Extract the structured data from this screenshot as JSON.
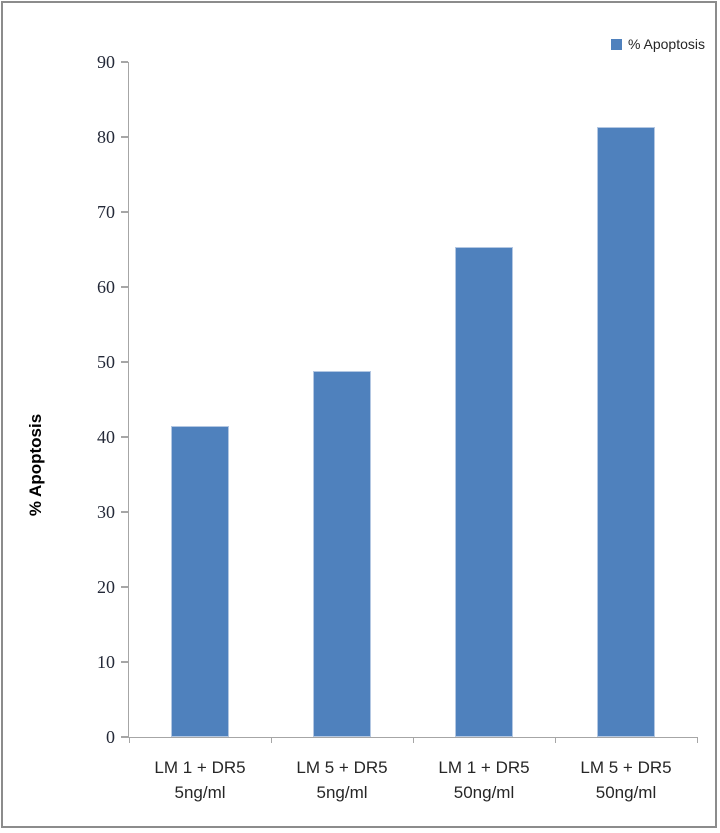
{
  "legend": {
    "label": "% Apoptosis"
  },
  "chart_data": {
    "type": "bar",
    "title": "",
    "categories": [
      "LM 1 + DR5 5ng/ml",
      "LM 5 + DR5 5ng/ml",
      "LM 1 + DR5 50ng/ml",
      "LM 5 + DR5 50ng/ml"
    ],
    "category_labels": [
      [
        "LM 1 + DR5",
        "5ng/ml"
      ],
      [
        "LM 5 + DR5",
        "5ng/ml"
      ],
      [
        "LM 1 + DR5",
        "50ng/ml"
      ],
      [
        "LM 5 + DR5",
        "50ng/ml"
      ]
    ],
    "series": [
      {
        "name": "% Apoptosis",
        "color": "#4f81bd",
        "values": [
          41.5,
          48.8,
          65.4,
          81.3
        ]
      }
    ],
    "xlabel": "",
    "ylabel": "% Apoptosis",
    "ylim": [
      0,
      90
    ],
    "ytick_step": 10,
    "ytick_labels": [
      "0",
      "10",
      "20",
      "30",
      "40",
      "50",
      "60",
      "70",
      "80",
      "90"
    ],
    "grid": false,
    "legend_position": "top-right"
  },
  "colors": {
    "bar": "#4f81bd",
    "bar_edge": "#b3c7e2",
    "axis": "#a6a6a6",
    "tick_text": "#242938",
    "label_text": "#262626",
    "frame": "#8c8c8c"
  }
}
